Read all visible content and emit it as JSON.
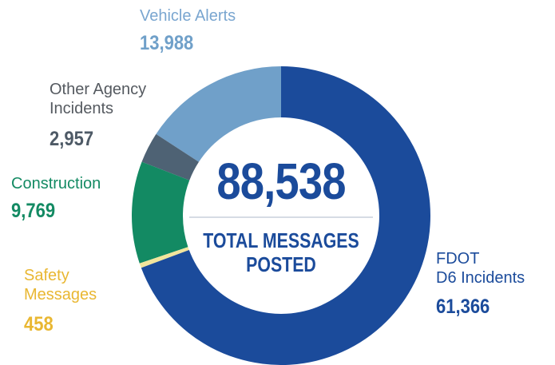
{
  "chart_data": {
    "type": "donut",
    "series": [
      {
        "name": "FDOT\nD6 Incidents",
        "color": "#1b4b9b",
        "label_color": "#1b4b9b",
        "value_color": "#1b4b9b",
        "values": [
          61366
        ],
        "value_labels": [
          "61,366"
        ]
      },
      {
        "name": "Safety\nMessages",
        "color": "#f2e59c",
        "label_color": "#e9b732",
        "value_color": "#e9b732",
        "values": [
          458
        ],
        "value_labels": [
          "458"
        ]
      },
      {
        "name": "Construction",
        "color": "#138a63",
        "label_color": "#138a63",
        "value_color": "#138a63",
        "values": [
          9769
        ],
        "value_labels": [
          "9,769"
        ]
      },
      {
        "name": "Other Agency\nIncidents",
        "color": "#4e6274",
        "label_color": "#555a60",
        "value_color": "#4e5a66",
        "values": [
          2957
        ],
        "value_labels": [
          "2,957"
        ]
      },
      {
        "name": "Vehicle Alerts",
        "color": "#70a0c9",
        "label_color": "#7aa6d0",
        "value_color": "#70a0c9",
        "values": [
          13988
        ],
        "value_labels": [
          "13,988"
        ]
      }
    ],
    "total": {
      "value": 88538,
      "label": "88,538"
    },
    "center_text": "TOTAL MESSAGES\nPOSTED"
  }
}
